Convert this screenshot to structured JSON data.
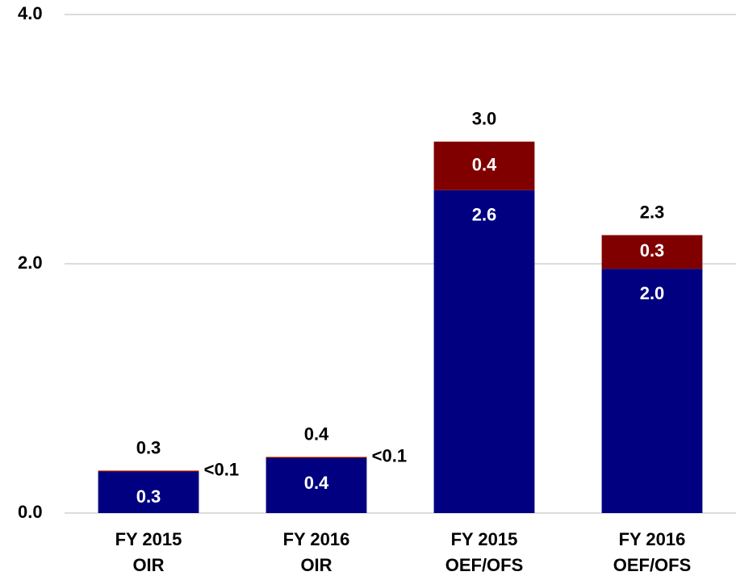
{
  "chart_data": {
    "type": "stacked_bar",
    "categories": [
      [
        "FY 2015",
        "OIR"
      ],
      [
        "FY 2016",
        "OIR"
      ],
      [
        "FY 2015",
        "OEF/OFS"
      ],
      [
        "FY 2016",
        "OEF/OFS"
      ]
    ],
    "series": [
      {
        "color": "#000080",
        "values": [
          0.33,
          0.44,
          2.59,
          1.96
        ],
        "value_labels": [
          "0.3",
          "0.4",
          "2.6",
          "2.0"
        ]
      },
      {
        "color": "#800000",
        "values": [
          0.01,
          0.01,
          0.39,
          0.27
        ],
        "value_labels": [
          "<0.1",
          "<0.1",
          "0.4",
          "0.3"
        ]
      }
    ],
    "totals": [
      0.34,
      0.45,
      2.98,
      2.23
    ],
    "total_labels": [
      "0.3",
      "0.4",
      "3.0",
      "2.3"
    ],
    "ylim": [
      0,
      4
    ],
    "yticks": [
      {
        "value": 0,
        "label": "0.0"
      },
      {
        "value": 2,
        "label": "2.0"
      },
      {
        "value": 4,
        "label": "4.0"
      }
    ],
    "grid": true
  }
}
